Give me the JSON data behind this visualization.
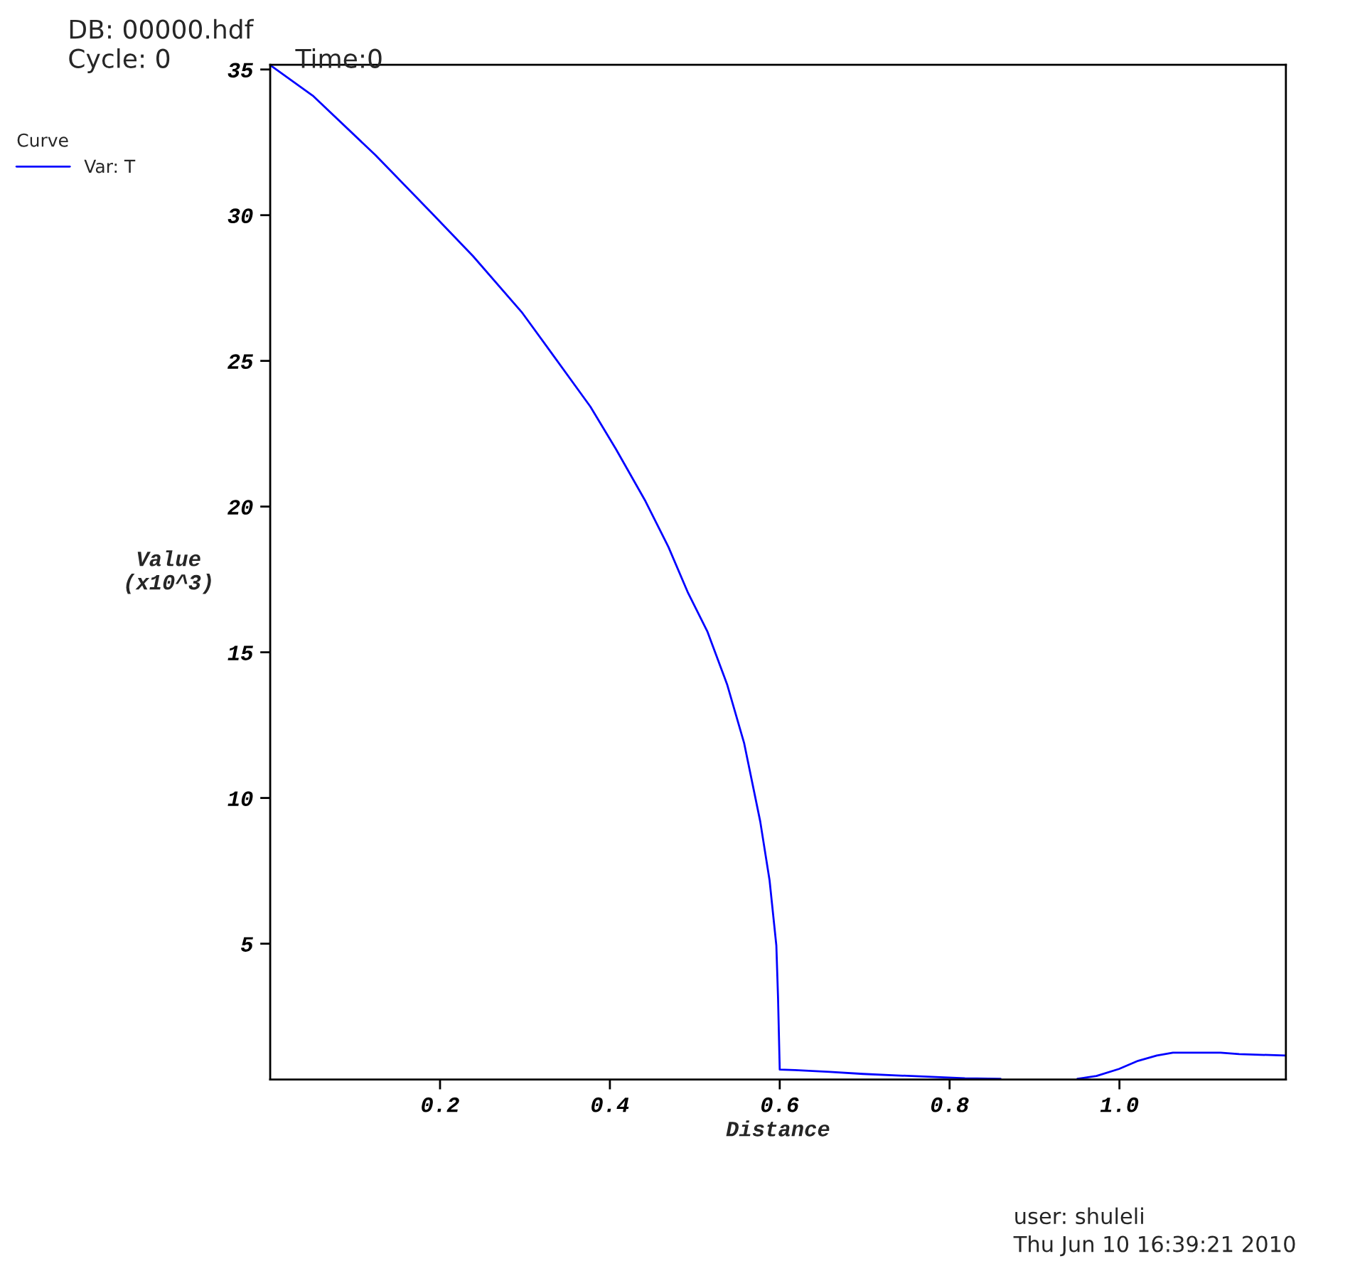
{
  "chart_data": {
    "type": "line",
    "title": "DB: 00000.hdf",
    "annotations": [
      "Cycle: 0",
      "Time:0",
      "user: shuleli",
      "Thu Jun 10 16:39:21 2010"
    ],
    "xlabel": "Distance",
    "ylabel": "Value\n(x10^3)",
    "legend_title": "Curve",
    "x": [
      0,
      0.051,
      0.124,
      0.189,
      0.239,
      0.296,
      0.334,
      0.377,
      0.407,
      0.442,
      0.469,
      0.492,
      0.515,
      0.538,
      0.558,
      0.577,
      0.588,
      0.596,
      0.598,
      0.6,
      0.618,
      0.659,
      0.698,
      0.737,
      0.779,
      0.818,
      0.86,
      0.9,
      0.9505,
      0.973,
      0.9995,
      1.022,
      1.044,
      1.063,
      1.119,
      1.141,
      1.196
    ],
    "series": [
      {
        "name": "Var: T",
        "color": "#0000ff",
        "values": [
          35.15,
          34.08,
          32.06,
          30.11,
          28.59,
          26.68,
          25.16,
          23.43,
          21.98,
          20.18,
          18.61,
          17.04,
          15.7,
          13.9,
          11.89,
          9.2,
          7.18,
          4.94,
          3.14,
          0.68,
          0.66,
          0.6,
          0.53,
          0.48,
          0.43,
          0.38,
          0.36,
          null,
          0.36,
          0.46,
          0.7,
          0.98,
          1.16,
          1.26,
          1.26,
          1.21,
          1.16
        ]
      }
    ],
    "xlim": [
      0,
      1.196
    ],
    "ylim": [
      0.34,
      35.16
    ],
    "xticks": [
      0.2,
      0.4,
      0.6,
      0.8,
      {
        "value": 1.0,
        "label": "1.0"
      }
    ],
    "yticks": [
      5,
      10,
      15,
      20,
      25,
      30,
      35
    ],
    "legend": "top left",
    "grid": false,
    "line_style": "solid",
    "marker": "none"
  }
}
